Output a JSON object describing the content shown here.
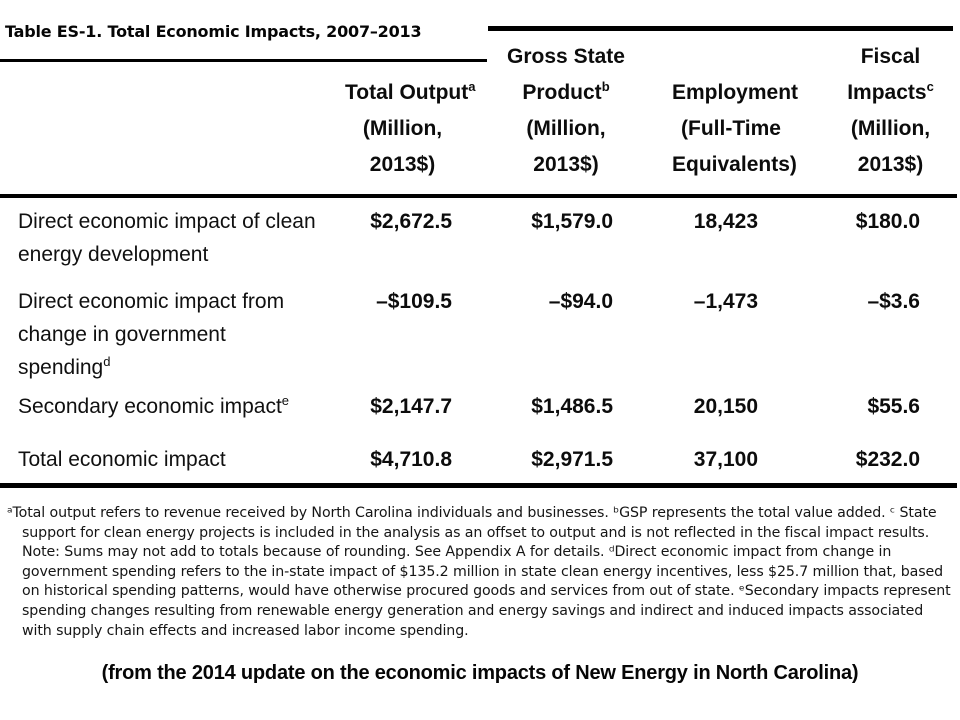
{
  "title": "Table ES-1. Total Economic Impacts, 2007–2013",
  "table": {
    "headers": [
      {
        "pre": "",
        "main": "Total Output",
        "sup": "a",
        "unit1": "(Million,",
        "unit2": "2013$)"
      },
      {
        "pre": "Gross State",
        "main": "Product",
        "sup": "b",
        "unit1": "(Million,",
        "unit2": "2013$)"
      },
      {
        "pre": "",
        "main": "Employment",
        "sup": "",
        "unit1": "(Full-Time",
        "unit2": "Equivalents)"
      },
      {
        "pre": "Fiscal",
        "main": "Impacts",
        "sup": "c",
        "unit1": "(Million,",
        "unit2": "2013$)"
      }
    ],
    "rows": [
      {
        "lines": [
          "Direct economic impact of clean",
          "energy development"
        ],
        "sup": "",
        "values": [
          "$2,672.5",
          "$1,579.0",
          "18,423",
          "$180.0"
        ]
      },
      {
        "lines": [
          "Direct economic impact from",
          "change in government",
          "spending"
        ],
        "sup": "d",
        "values": [
          "–$109.5",
          "–$94.0",
          "–1,473",
          "–$3.6"
        ]
      },
      {
        "lines": [
          "Secondary economic impact"
        ],
        "sup": "e",
        "values": [
          "$2,147.7",
          "$1,486.5",
          "20,150",
          "$55.6"
        ]
      },
      {
        "lines": [
          "Total economic impact"
        ],
        "sup": "",
        "values": [
          "$4,710.8",
          "$2,971.5",
          "37,100",
          "$232.0"
        ]
      }
    ]
  },
  "footnotes": "ᵃTotal output refers to revenue received by North Carolina individuals and businesses. ᵇGSP represents the total value added. ᶜ State support for clean energy projects is included in the analysis as an offset to output and is not reflected in the fiscal impact results. Note: Sums may not add to totals because of rounding. See Appendix A for details. ᵈDirect economic impact from change in government spending refers to the in-state impact of $135.2 million in state clean energy incentives, less $25.7 million that, based on historical spending patterns, would have otherwise procured goods and services from out of state. ᵉSecondary impacts represent spending changes resulting from renewable energy generation and energy savings and indirect and induced impacts associated with supply chain effects and increased labor income spending.",
  "caption": "(from the 2014 update on the economic impacts of New Energy in North Carolina)"
}
